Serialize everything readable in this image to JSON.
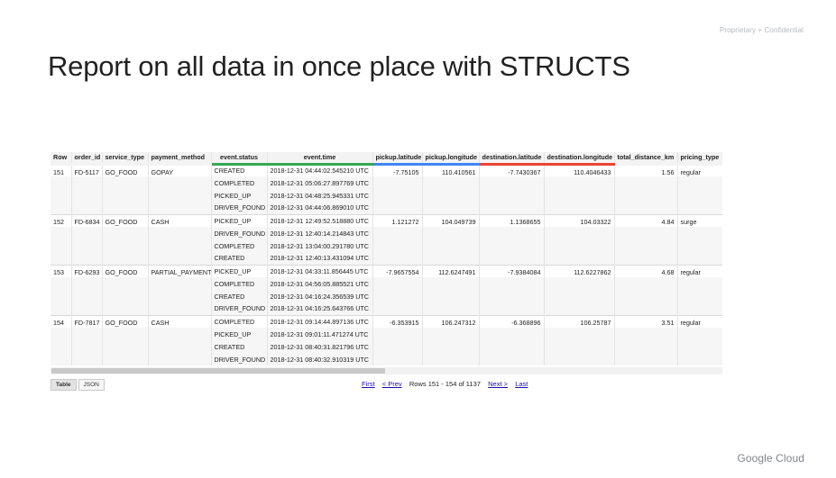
{
  "confidential": "Proprietary + Confidential",
  "title": "Report on all data in once place with STRUCTS",
  "columns": [
    "Row",
    "order_id",
    "service_type",
    "payment_method",
    "event.status",
    "event.time",
    "pickup.latitude",
    "pickup.longitude",
    "destination.latitude",
    "destination.longitude",
    "total_distance_km",
    "pricing_type"
  ],
  "rows": [
    {
      "row": "151",
      "order_id": "FD-5117",
      "service_type": "GO_FOOD",
      "payment_method": "GOPAY",
      "pickup_latitude": "-7.75105",
      "pickup_longitude": "110.410561",
      "destination_latitude": "-7.7430367",
      "destination_longitude": "110.4046433",
      "total_distance_km": "1.56",
      "pricing_type": "regular",
      "events": [
        {
          "status": "CREATED",
          "time": "2018-12-31 04:44:02.545210 UTC"
        },
        {
          "status": "COMPLETED",
          "time": "2018-12-31 05:06:27.897769 UTC"
        },
        {
          "status": "PICKED_UP",
          "time": "2018-12-31 04:48:25.945331 UTC"
        },
        {
          "status": "DRIVER_FOUND",
          "time": "2018-12-31 04:44:06.869010 UTC"
        }
      ]
    },
    {
      "row": "152",
      "order_id": "FD-6834",
      "service_type": "GO_FOOD",
      "payment_method": "CASH",
      "pickup_latitude": "1.121272",
      "pickup_longitude": "104.049739",
      "destination_latitude": "1.1368655",
      "destination_longitude": "104.03322",
      "total_distance_km": "4.84",
      "pricing_type": "surge",
      "events": [
        {
          "status": "PICKED_UP",
          "time": "2018-12-31 12:49:52.518880 UTC"
        },
        {
          "status": "DRIVER_FOUND",
          "time": "2018-12-31 12:40:14.214843 UTC"
        },
        {
          "status": "COMPLETED",
          "time": "2018-12-31 13:04:00.291780 UTC"
        },
        {
          "status": "CREATED",
          "time": "2018-12-31 12:40:13.431094 UTC"
        }
      ]
    },
    {
      "row": "153",
      "order_id": "FD-6293",
      "service_type": "GO_FOOD",
      "payment_method": "PARTIAL_PAYMENT",
      "pickup_latitude": "-7.9657554",
      "pickup_longitude": "112.6247491",
      "destination_latitude": "-7.9384084",
      "destination_longitude": "112.6227862",
      "total_distance_km": "4.68",
      "pricing_type": "regular",
      "events": [
        {
          "status": "PICKED_UP",
          "time": "2018-12-31 04:33:11.856445 UTC"
        },
        {
          "status": "COMPLETED",
          "time": "2018-12-31 04:56:05.885521 UTC"
        },
        {
          "status": "CREATED",
          "time": "2018-12-31 04:16:24.356539 UTC"
        },
        {
          "status": "DRIVER_FOUND",
          "time": "2018-12-31 04:16:25.643766 UTC"
        }
      ]
    },
    {
      "row": "154",
      "order_id": "FD-7817",
      "service_type": "GO_FOOD",
      "payment_method": "CASH",
      "pickup_latitude": "-6.353915",
      "pickup_longitude": "106.247312",
      "destination_latitude": "-6.368896",
      "destination_longitude": "106.25787",
      "total_distance_km": "3.51",
      "pricing_type": "regular",
      "events": [
        {
          "status": "COMPLETED",
          "time": "2018-12-31 09:14:44.897136 UTC"
        },
        {
          "status": "PICKED_UP",
          "time": "2018-12-31 09:01:11.471274 UTC"
        },
        {
          "status": "CREATED",
          "time": "2018-12-31 08:40:31.821796 UTC"
        },
        {
          "status": "DRIVER_FOUND",
          "time": "2018-12-31 08:40:32.910319 UTC"
        }
      ]
    }
  ],
  "view_tabs": [
    "Table",
    "JSON"
  ],
  "pager": {
    "first": "First",
    "prev": "< Prev",
    "info": "Rows 151 - 154 of 1137",
    "next": "Next >",
    "last": "Last"
  },
  "brand": "Google Cloud",
  "colors": {
    "event_underline": "#34a853",
    "pickup_underline": "#4285f4",
    "destination_underline": "#ea4335"
  }
}
